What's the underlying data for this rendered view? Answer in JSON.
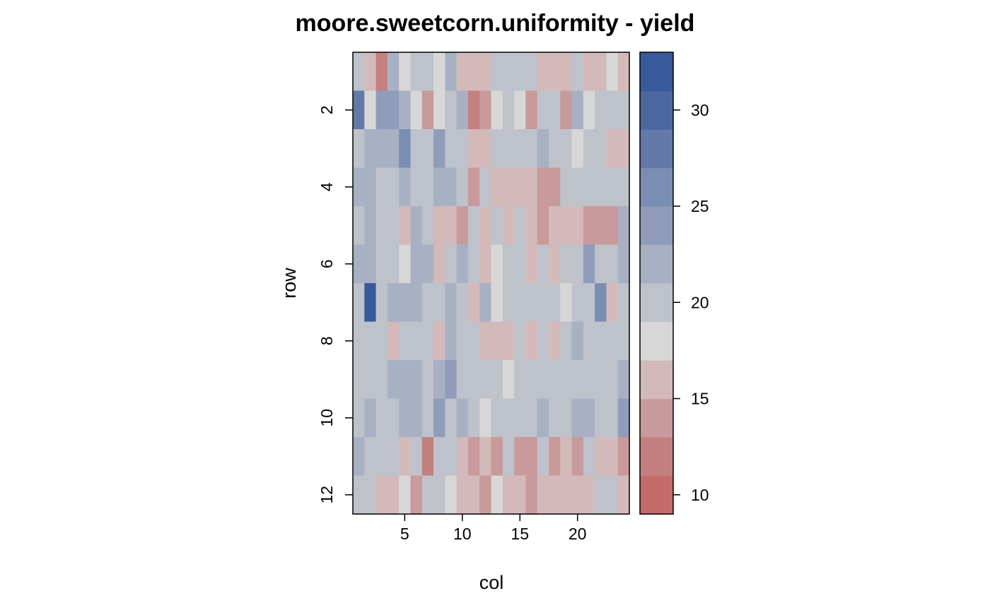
{
  "chart_data": {
    "type": "heatmap",
    "title": "moore.sweetcorn.uniformity - yield",
    "xlabel": "col",
    "ylabel": "row",
    "xlim": [
      0.5,
      24.5
    ],
    "ylim": [
      12.5,
      0.5
    ],
    "x_ticks": [
      "5",
      "10",
      "15",
      "20"
    ],
    "y_ticks": [
      "2",
      "4",
      "6",
      "8",
      "10",
      "12"
    ],
    "colorbar": {
      "range": [
        9,
        33
      ],
      "ticks": [
        "10",
        "15",
        "20",
        "25",
        "30"
      ],
      "bin_colors": [
        "#c56b6b",
        "#c47f80",
        "#c99a9b",
        "#d3b9b9",
        "#d7d7d7",
        "#bec2cb",
        "#a8b1c3",
        "#8f9dbb",
        "#7a8db3",
        "#6379aa",
        "#4c67a0",
        "#375a9a"
      ]
    },
    "grid": false,
    "values": [
      [
        19,
        15,
        11,
        21,
        17,
        19,
        19,
        17,
        21,
        16,
        16,
        16,
        19,
        19,
        19,
        19,
        15,
        15,
        15,
        19,
        15,
        15,
        17,
        15
      ],
      [
        27,
        17,
        24,
        24,
        22,
        18,
        13,
        17,
        19,
        21,
        12,
        14,
        17,
        19,
        17,
        13,
        19,
        19,
        13,
        21,
        17,
        19,
        19,
        19
      ],
      [
        19,
        22,
        22,
        21,
        25,
        19,
        19,
        24,
        19,
        19,
        16,
        16,
        19,
        19,
        19,
        19,
        21,
        19,
        19,
        17,
        19,
        19,
        16,
        16
      ],
      [
        21,
        21,
        19,
        19,
        21,
        19,
        19,
        21,
        22,
        19,
        14,
        19,
        16,
        16,
        16,
        16,
        14,
        14,
        19,
        19,
        19,
        19,
        20,
        20
      ],
      [
        20,
        22,
        20,
        19,
        15,
        22,
        19,
        16,
        16,
        13,
        19,
        15,
        20,
        15,
        19,
        15,
        13,
        16,
        16,
        16,
        13,
        13,
        13,
        22
      ],
      [
        22,
        22,
        20,
        20,
        17,
        22,
        22,
        15,
        19,
        22,
        19,
        15,
        17,
        20,
        19,
        16,
        19,
        16,
        19,
        19,
        24,
        19,
        19,
        22
      ],
      [
        20,
        32,
        20,
        22,
        22,
        22,
        19,
        20,
        22,
        19,
        16,
        22,
        17,
        19,
        20,
        20,
        20,
        20,
        17,
        20,
        19,
        25,
        15,
        19
      ],
      [
        20,
        20,
        20,
        16,
        20,
        20,
        19,
        16,
        22,
        20,
        19,
        16,
        16,
        16,
        19,
        16,
        19,
        15,
        19,
        22,
        19,
        19,
        20,
        19
      ],
      [
        19,
        20,
        20,
        22,
        22,
        22,
        19,
        22,
        24,
        19,
        19,
        20,
        19,
        17,
        19,
        19,
        20,
        20,
        19,
        20,
        20,
        19,
        20,
        22
      ],
      [
        20,
        22,
        20,
        20,
        22,
        22,
        19,
        24,
        20,
        22,
        19,
        17,
        19,
        20,
        19,
        19,
        22,
        19,
        20,
        22,
        22,
        19,
        19,
        24
      ],
      [
        21,
        19,
        19,
        19,
        15,
        19,
        12,
        20,
        19,
        16,
        14,
        15,
        14,
        19,
        14,
        14,
        19,
        14,
        16,
        14,
        19,
        16,
        16,
        14
      ],
      [
        20,
        19,
        15,
        15,
        17,
        14,
        19,
        19,
        17,
        15,
        15,
        14,
        17,
        15,
        15,
        14,
        16,
        16,
        16,
        15,
        15,
        19,
        19,
        15
      ]
    ]
  }
}
